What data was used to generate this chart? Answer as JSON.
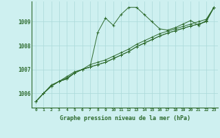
{
  "title": "Graphe pression niveau de la mer (hPa)",
  "x_labels": [
    "0",
    "1",
    "2",
    "3",
    "4",
    "5",
    "6",
    "7",
    "8",
    "9",
    "10",
    "11",
    "12",
    "13",
    "14",
    "15",
    "16",
    "17",
    "18",
    "19",
    "20",
    "21",
    "22",
    "23"
  ],
  "ylim": [
    1005.4,
    1009.85
  ],
  "yticks": [
    1006,
    1007,
    1008,
    1009
  ],
  "background_color": "#cef0f0",
  "grid_color": "#aad8d8",
  "line_color": "#2d6a2d",
  "series": [
    [
      1005.65,
      1006.0,
      1006.3,
      1006.5,
      1006.6,
      1006.85,
      1007.0,
      1007.1,
      1008.55,
      1009.15,
      1008.85,
      1009.3,
      1009.6,
      1009.6,
      1009.3,
      1009.0,
      1008.7,
      1008.65,
      1008.75,
      1008.9,
      1009.05,
      1008.85,
      1009.05,
      1009.6
    ],
    [
      1005.65,
      1006.0,
      1006.3,
      1006.5,
      1006.6,
      1006.85,
      1007.0,
      1007.1,
      1007.2,
      1007.3,
      1007.45,
      1007.6,
      1007.75,
      1007.95,
      1008.1,
      1008.25,
      1008.4,
      1008.52,
      1008.62,
      1008.72,
      1008.82,
      1008.9,
      1009.0,
      1009.6
    ],
    [
      1005.65,
      1006.0,
      1006.3,
      1006.5,
      1006.65,
      1006.85,
      1007.0,
      1007.1,
      1007.2,
      1007.3,
      1007.45,
      1007.6,
      1007.75,
      1007.95,
      1008.1,
      1008.25,
      1008.4,
      1008.52,
      1008.62,
      1008.72,
      1008.82,
      1008.9,
      1009.0,
      1009.6
    ],
    [
      1005.65,
      1006.0,
      1006.35,
      1006.5,
      1006.7,
      1006.9,
      1007.0,
      1007.2,
      1007.3,
      1007.4,
      1007.55,
      1007.7,
      1007.85,
      1008.05,
      1008.2,
      1008.35,
      1008.5,
      1008.6,
      1008.7,
      1008.8,
      1008.9,
      1009.0,
      1009.1,
      1009.6
    ]
  ]
}
